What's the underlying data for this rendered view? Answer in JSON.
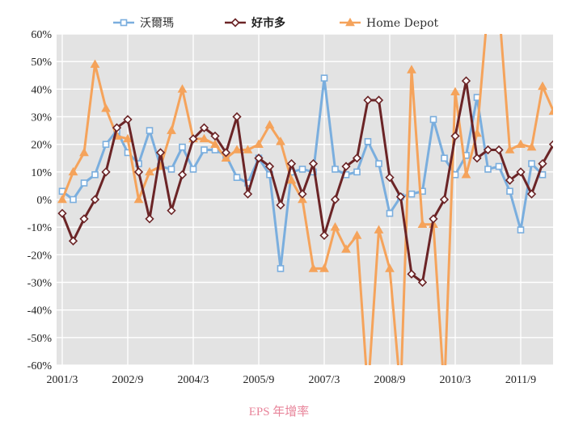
{
  "chart_data": {
    "type": "line",
    "title": "",
    "xlabel": "EPS 年增率",
    "ylabel": "",
    "ylim": [
      -0.6,
      0.6
    ],
    "yticks": [
      0.6,
      0.5,
      0.4,
      0.3,
      0.2,
      0.1,
      0,
      -0.1,
      -0.2,
      -0.3,
      -0.4,
      -0.5,
      -0.6
    ],
    "ytick_labels": [
      "60%",
      "50%",
      "40%",
      "30%",
      "20%",
      "10%",
      "0%",
      "-10%",
      "-20%",
      "-30%",
      "-40%",
      "-50%",
      "-60%"
    ],
    "x_tick_labels": [
      "2001/3",
      "2002/9",
      "2004/3",
      "2005/9",
      "2007/3",
      "2008/9",
      "2010/3",
      "2011/9"
    ],
    "x_tick_indices": [
      0,
      6,
      12,
      18,
      24,
      30,
      36,
      42
    ],
    "grid": true,
    "legend_position": "top",
    "background_color": "#e3e3e3",
    "grid_color": "#ffffff",
    "series": [
      {
        "name": "沃爾瑪",
        "color": "#7aaede",
        "marker": "square",
        "values": [
          0.03,
          0.0,
          0.06,
          0.09,
          0.2,
          0.25,
          0.17,
          0.13,
          0.25,
          0.12,
          0.11,
          0.19,
          0.11,
          0.18,
          0.18,
          0.16,
          0.08,
          0.06,
          0.15,
          0.09,
          -0.25,
          0.1,
          0.11,
          0.1,
          0.44,
          0.11,
          0.09,
          0.1,
          0.21,
          0.13,
          -0.05,
          0.01,
          0.02,
          0.03,
          0.29,
          0.15,
          0.09,
          0.16,
          0.37,
          0.11,
          0.12,
          0.03,
          -0.11,
          0.13,
          0.09
        ]
      },
      {
        "name": "好市多",
        "color": "#6b2426",
        "marker": "diamond",
        "values": [
          -0.05,
          -0.15,
          -0.07,
          0.0,
          0.1,
          0.26,
          0.29,
          0.1,
          -0.07,
          0.17,
          -0.04,
          0.09,
          0.22,
          0.26,
          0.23,
          0.17,
          0.3,
          0.02,
          0.15,
          0.12,
          -0.02,
          0.13,
          0.02,
          0.13,
          -0.13,
          0.0,
          0.12,
          0.15,
          0.36,
          0.36,
          0.08,
          0.01,
          -0.27,
          -0.3,
          -0.07,
          0.0,
          0.23,
          0.43,
          0.15,
          0.18,
          0.18,
          0.07,
          0.1,
          0.02,
          0.13,
          0.2
        ]
      },
      {
        "name": "Home Depot",
        "color": "#f5a35b",
        "marker": "triangle",
        "values": [
          0.0,
          0.1,
          0.17,
          0.49,
          0.33,
          0.23,
          0.22,
          0.0,
          0.1,
          0.12,
          0.25,
          0.4,
          0.22,
          0.22,
          0.2,
          0.15,
          0.18,
          0.18,
          0.2,
          0.27,
          0.21,
          0.07,
          0.0,
          -0.25,
          -0.25,
          -0.1,
          -0.18,
          -0.13,
          -0.7,
          -0.11,
          -0.25,
          -0.7,
          0.47,
          -0.09,
          -0.09,
          -0.7,
          0.39,
          0.09,
          0.24,
          0.7,
          0.7,
          0.18,
          0.2,
          0.19,
          0.41,
          0.32,
          0.17
        ]
      }
    ]
  }
}
